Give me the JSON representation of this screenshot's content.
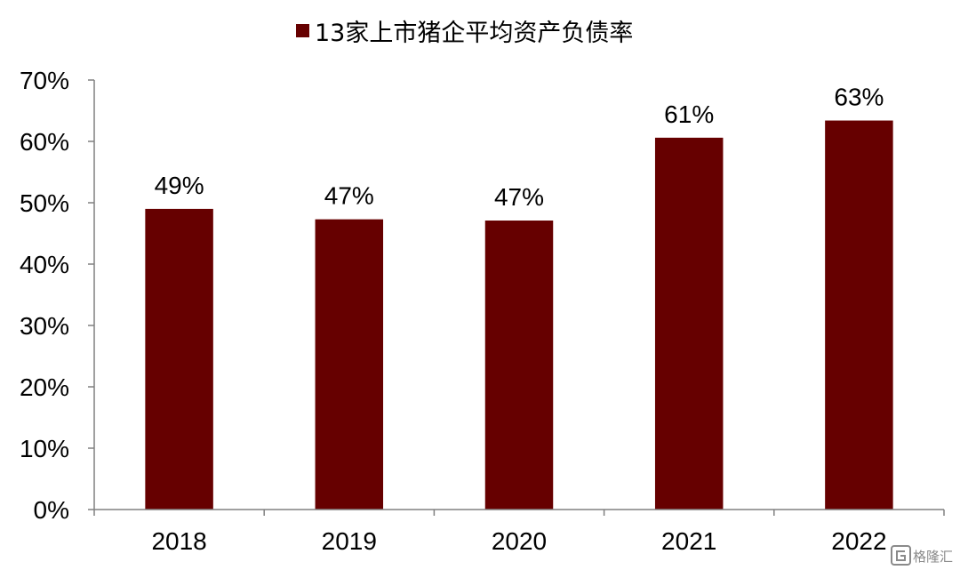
{
  "chart_data": {
    "type": "bar",
    "categories": [
      "2018",
      "2019",
      "2020",
      "2021",
      "2022"
    ],
    "series": [
      {
        "name": "13家上市猪企平均资产负债率",
        "values": [
          49,
          47.3,
          47.1,
          60.6,
          63.4
        ],
        "data_labels": [
          "49%",
          "47%",
          "47%",
          "61%",
          "63%"
        ]
      }
    ],
    "ylim": [
      0,
      70
    ],
    "yticks": [
      0,
      10,
      20,
      30,
      40,
      50,
      60,
      70
    ],
    "ytick_labels": [
      "0%",
      "10%",
      "20%",
      "30%",
      "40%",
      "50%",
      "60%",
      "70%"
    ],
    "grid": false,
    "legend_position": "top-center",
    "colors": {
      "bar": "#660000",
      "axis": "#808080"
    }
  },
  "watermark": {
    "icon": "logo-icon",
    "text": "格隆汇"
  }
}
